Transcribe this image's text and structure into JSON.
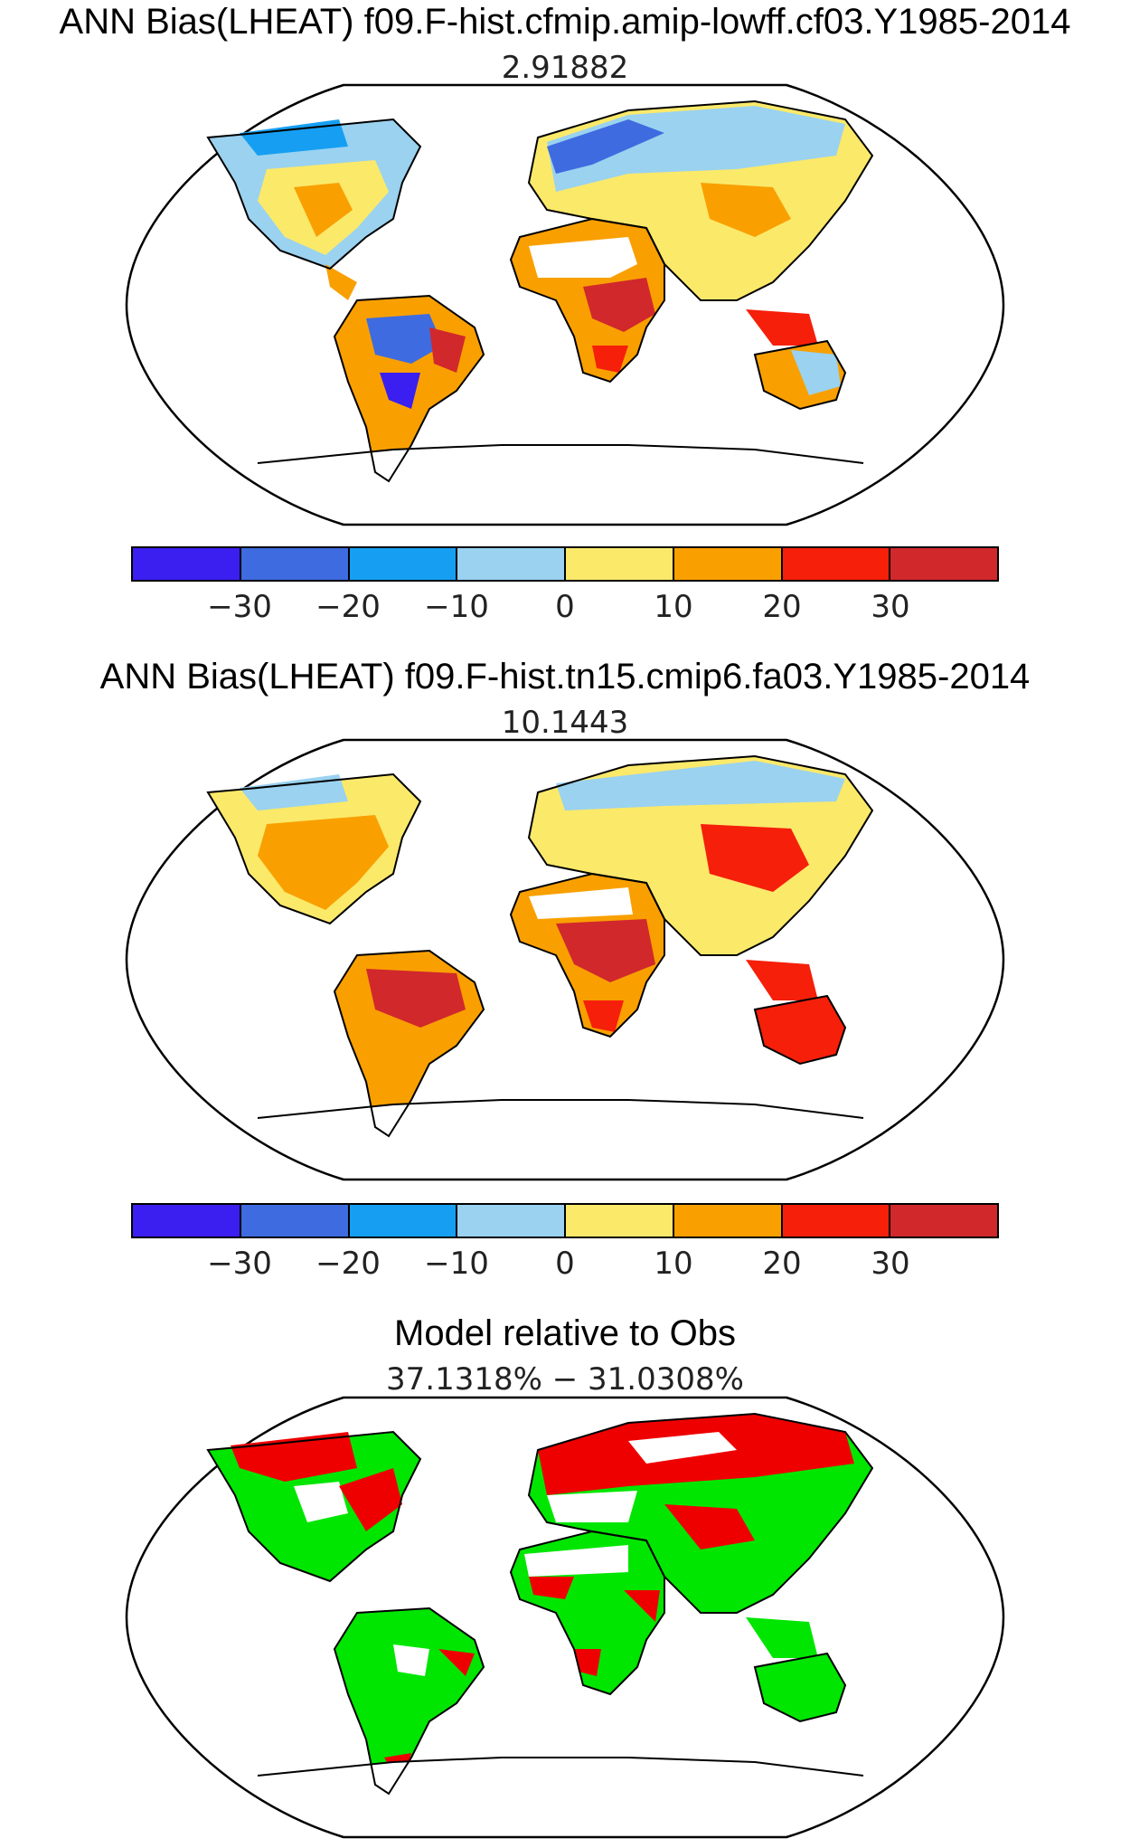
{
  "panels": [
    {
      "title": "ANN Bias(LHEAT) f09.F-hist.cfmip.amip-lowff.cf03.Y1985-2014",
      "subtitle": "2.91882"
    },
    {
      "title": "ANN Bias(LHEAT) f09.F-hist.tn15.cmip6.fa03.Y1985-2014",
      "subtitle": "10.1443"
    },
    {
      "title": "Model relative to Obs",
      "subtitle": "37.1318% − 31.0308%"
    }
  ],
  "colorbar": {
    "colors": [
      "#3b1ff0",
      "#3e6be0",
      "#169ff2",
      "#9ad2f0",
      "#fbe96a",
      "#f9a000",
      "#f51f0a",
      "#d1282c"
    ],
    "ticks": [
      "−30",
      "−20",
      "−10",
      "0",
      "10",
      "20",
      "30"
    ]
  },
  "relative_colors": {
    "model": "#00e600",
    "obs": "#ee0000"
  }
}
